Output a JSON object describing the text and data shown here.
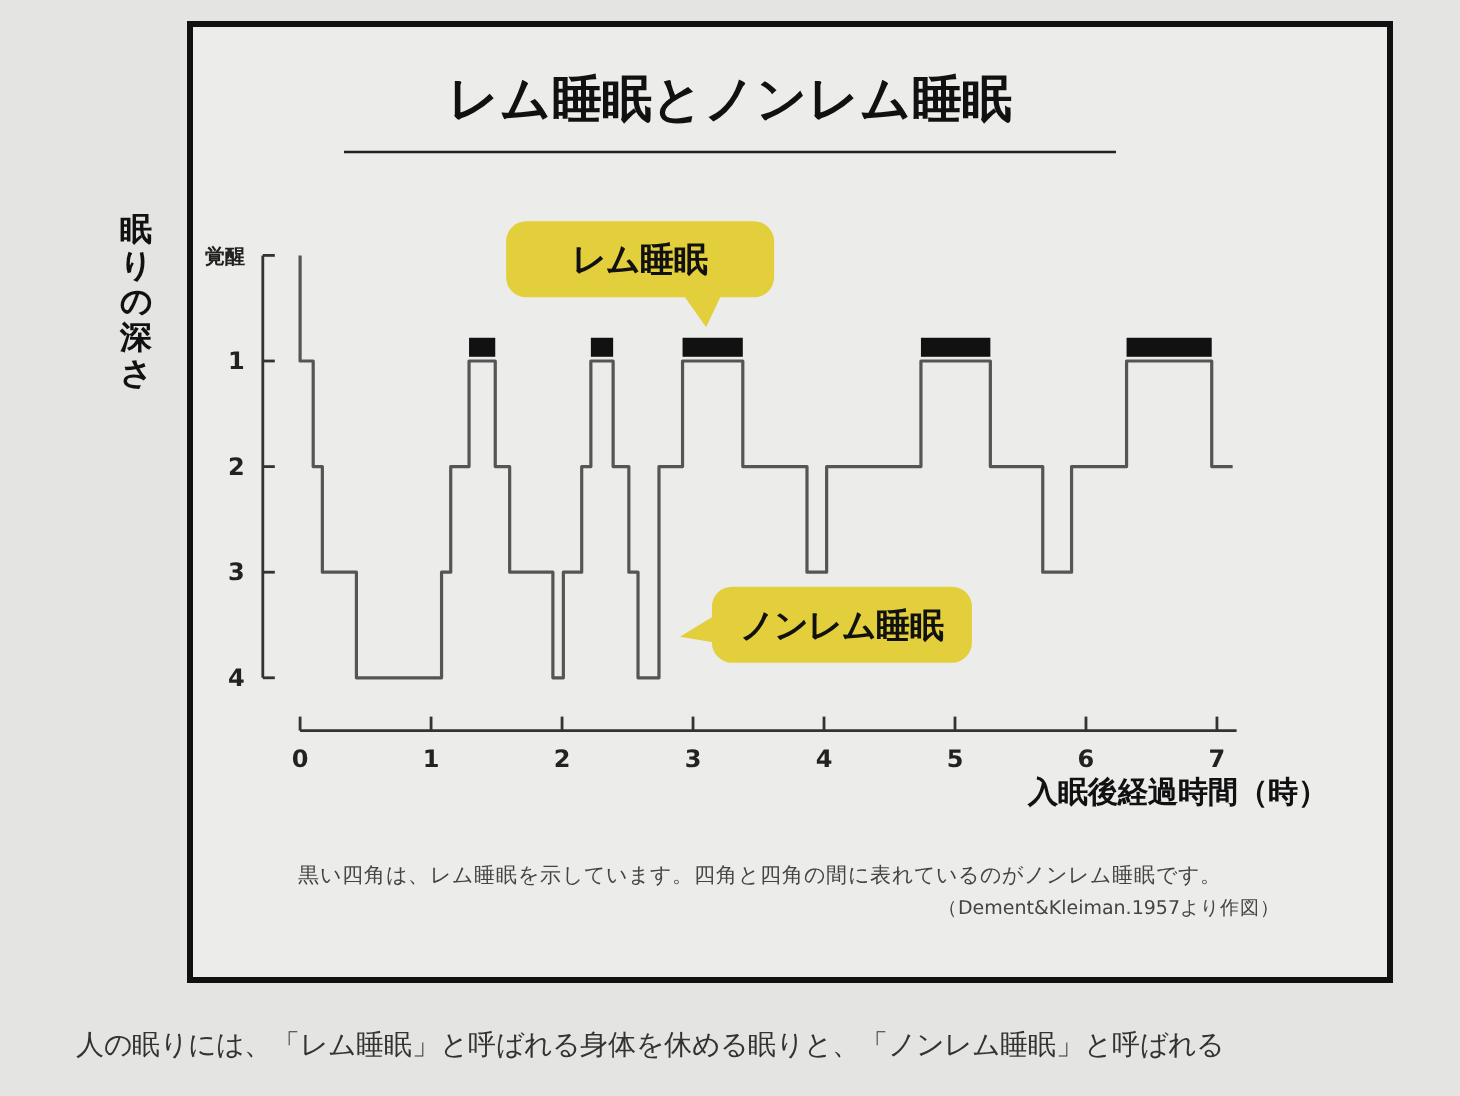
{
  "chart_data": {
    "type": "step",
    "title": "レム睡眠とノンレム睡眠",
    "xlabel": "入眠後経過時間（時）",
    "ylabel": "眠りの深さ",
    "xlim": [
      -0.3,
      7.15
    ],
    "xticks": [
      0,
      1,
      2,
      3,
      4,
      5,
      6,
      7
    ],
    "ylim": [
      4.5,
      0
    ],
    "yticks": [
      {
        "value": 0,
        "label": "覚醒"
      },
      1,
      2,
      3,
      4
    ],
    "grid": false,
    "series": [
      {
        "color": "#555555",
        "x": [
          0,
          0,
          0.1,
          0.17,
          0.43,
          1.08,
          1.15,
          1.29,
          1.49,
          1.6,
          1.93,
          2.01,
          2.15,
          2.22,
          2.39,
          2.51,
          2.58,
          2.74,
          2.92,
          3.38,
          3.87,
          4.02,
          4.74,
          5.27,
          5.67,
          5.89,
          6.31,
          6.96,
          7.12
        ],
        "values": [
          0,
          1,
          2,
          3,
          4,
          3,
          2,
          1,
          2,
          3,
          4,
          3,
          2,
          1,
          2,
          3,
          4,
          2,
          1,
          2,
          3,
          2,
          1,
          2,
          3,
          2,
          1,
          2,
          2
        ]
      }
    ],
    "bands": [
      {
        "axis": "x",
        "from": 1.29,
        "to": 1.49,
        "color": "#111111"
      },
      {
        "axis": "x",
        "from": 2.22,
        "to": 2.39,
        "color": "#111111"
      },
      {
        "axis": "x",
        "from": 2.92,
        "to": 3.38,
        "color": "#111111"
      },
      {
        "axis": "x",
        "from": 4.74,
        "to": 5.27,
        "color": "#111111"
      },
      {
        "axis": "x",
        "from": 6.31,
        "to": 6.96,
        "color": "#111111"
      }
    ],
    "annotations": [
      "レム睡眠",
      "ノンレム睡眠",
      "黒い四角は、レム睡眠を示しています。四角と四角の間に表れているのがノンレム睡眠です。",
      "（Dement&Kleiman.1957より作図）",
      "人の眠りには、「レム睡眠」と呼ばれる身体を休める眠りと、「ノンレム睡眠」と呼ばれる"
    ]
  }
}
